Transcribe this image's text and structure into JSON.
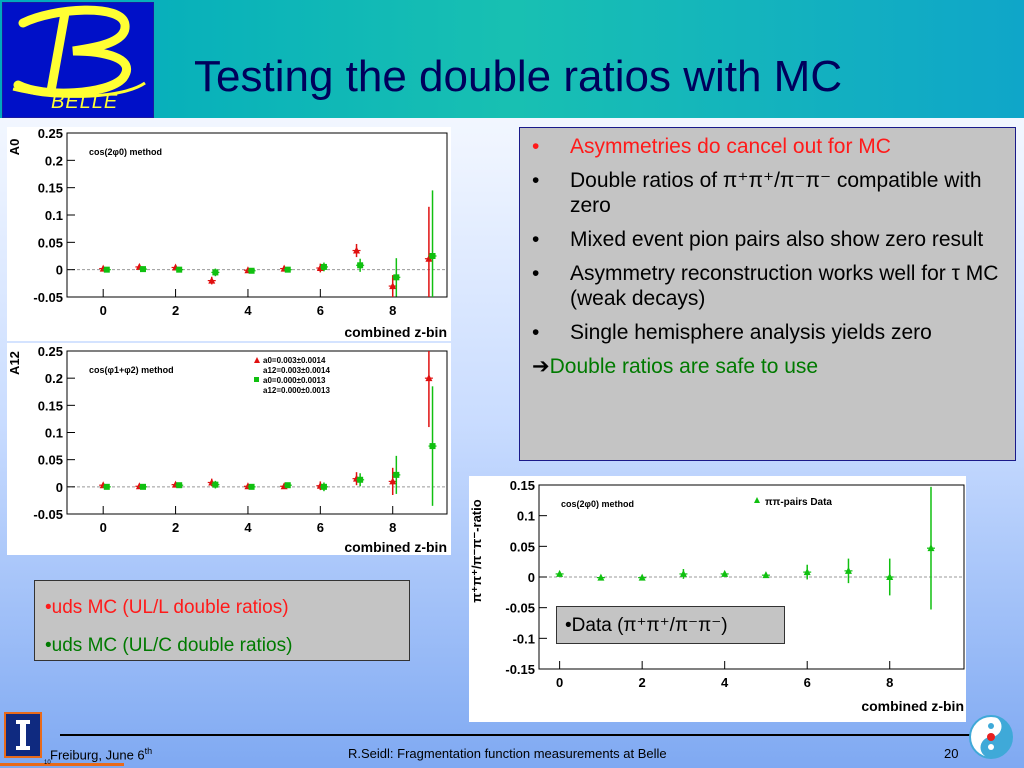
{
  "slide": {
    "title": "Testing the double ratios with MC",
    "logo_text": "BELLE"
  },
  "bullets": {
    "items": [
      {
        "text": "Asymmetries do cancel out for MC",
        "color": "#ff1a1a"
      },
      {
        "text": "Double ratios of π⁺π⁺/π⁻π⁻  compatible with zero"
      },
      {
        "text": "Mixed event pion pairs also show zero result"
      },
      {
        "text": "Asymmetry reconstruction works well for τ MC (weak decays)"
      },
      {
        "text": "Single hemisphere analysis yields zero"
      }
    ],
    "bullet_glyph": "•",
    "conclusion_arrow": "➔",
    "conclusion": "Double ratios are safe to use"
  },
  "legend_box": {
    "line1": "•uds MC (UL/L double ratios)",
    "line2": "•uds MC  (UL/C double ratios)",
    "color1": "#ff1a1a",
    "color2": "#007a00"
  },
  "data_box": {
    "label": "•Data     (π⁺π⁺/π⁻π⁻)"
  },
  "footer": {
    "left": "Freiburg, June 6",
    "left_sup": "th",
    "center": "R.Seidl: Fragmentation function measurements at Belle",
    "page": "20",
    "tiny": "10"
  },
  "chart_data": [
    {
      "type": "scatter",
      "annotation": "cos(2φ0) method",
      "ylabel": "A0",
      "xlabel": "combined z-bin",
      "xlim": [
        -1,
        9.5
      ],
      "ylim": [
        -0.05,
        0.25
      ],
      "xticks": [
        "0",
        "2",
        "4",
        "6",
        "8"
      ],
      "yticks": [
        "-0.05",
        "0",
        "0.05",
        "0.1",
        "0.15",
        "0.2",
        "0.25"
      ],
      "series": [
        {
          "color": "#e01010",
          "marker": "triangle",
          "x": [
            0,
            1,
            2,
            3,
            4,
            5,
            6,
            7,
            8,
            9
          ],
          "y": [
            0.002,
            0.005,
            0.004,
            -0.02,
            -0.001,
            0.002,
            0.003,
            0.035,
            -0.03,
            0.02
          ],
          "err": [
            0.004,
            0.004,
            0.004,
            0.007,
            0.004,
            0.005,
            0.008,
            0.012,
            0.02,
            0.095
          ]
        },
        {
          "color": "#10c010",
          "marker": "square",
          "x": [
            0.1,
            1.1,
            2.1,
            3.1,
            4.1,
            5.1,
            6.1,
            7.1,
            8.1,
            9.1
          ],
          "y": [
            0.0,
            0.001,
            0.0,
            -0.005,
            -0.002,
            0.0,
            0.005,
            0.008,
            -0.014,
            0.025
          ],
          "err": [
            0.004,
            0.004,
            0.004,
            0.007,
            0.004,
            0.005,
            0.008,
            0.012,
            0.035,
            0.12
          ]
        }
      ]
    },
    {
      "type": "scatter",
      "annotation": "cos(φ1+φ2) method",
      "ylabel": "A12",
      "xlabel": "combined z-bin",
      "xlim": [
        -1,
        9.5
      ],
      "ylim": [
        -0.05,
        0.25
      ],
      "xticks": [
        "0",
        "2",
        "4",
        "6",
        "8"
      ],
      "yticks": [
        "-0.05",
        "0",
        "0.05",
        "0.1",
        "0.15",
        "0.2",
        "0.25"
      ],
      "legend": [
        "a0=0.003±0.0014",
        "a12=0.003±0.0014",
        "a0=0.000±0.0013",
        "a12=0.000±0.0013"
      ],
      "series": [
        {
          "color": "#e01010",
          "marker": "triangle",
          "x": [
            0,
            1,
            2,
            3,
            4,
            5,
            6,
            7,
            8,
            9
          ],
          "y": [
            0.003,
            0.001,
            0.004,
            0.008,
            0.001,
            0.001,
            0.002,
            0.015,
            0.01,
            0.2
          ],
          "err": [
            0.004,
            0.004,
            0.004,
            0.007,
            0.004,
            0.005,
            0.008,
            0.012,
            0.025,
            0.09
          ]
        },
        {
          "color": "#10c010",
          "marker": "square",
          "x": [
            0.1,
            1.1,
            2.1,
            3.1,
            4.1,
            5.1,
            6.1,
            7.1,
            8.1,
            9.1
          ],
          "y": [
            0.0,
            0.0,
            0.003,
            0.004,
            0.0,
            0.003,
            0.0,
            0.013,
            0.022,
            0.075
          ],
          "err": [
            0.004,
            0.004,
            0.004,
            0.007,
            0.004,
            0.005,
            0.008,
            0.012,
            0.035,
            0.11
          ]
        }
      ]
    },
    {
      "type": "scatter",
      "annotation": "cos(2φ0) method",
      "legend": [
        "ππ-pairs Data"
      ],
      "ylabel": "π⁺π⁺/π⁻π⁻-ratio",
      "xlabel": "combined z-bin",
      "xlim": [
        -0.5,
        9.8
      ],
      "ylim": [
        -0.15,
        0.15
      ],
      "xticks": [
        "0",
        "2",
        "4",
        "6",
        "8"
      ],
      "yticks": [
        "-0.15",
        "-0.1",
        "-0.05",
        "0",
        "0.05",
        "0.1",
        "0.15"
      ],
      "series": [
        {
          "color": "#10c010",
          "marker": "triangle",
          "x": [
            0,
            1,
            2,
            3,
            4,
            5,
            6,
            7,
            8,
            9
          ],
          "y": [
            0.005,
            -0.001,
            -0.001,
            0.005,
            0.005,
            0.003,
            0.008,
            0.01,
            0.0,
            0.047
          ],
          "err": [
            0.003,
            0.003,
            0.003,
            0.008,
            0.004,
            0.004,
            0.012,
            0.02,
            0.03,
            0.1
          ]
        }
      ]
    }
  ]
}
